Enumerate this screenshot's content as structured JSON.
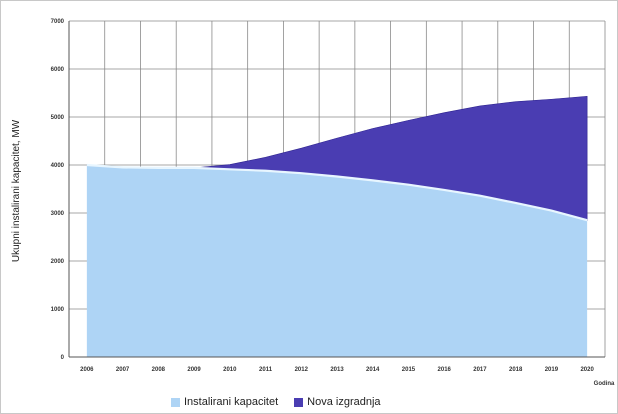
{
  "chart_data": {
    "type": "area",
    "stacked": true,
    "x": [
      "2006",
      "2007",
      "2008",
      "2009",
      "2010",
      "2011",
      "2012",
      "2013",
      "2014",
      "2015",
      "2016",
      "2017",
      "2018",
      "2019",
      "2020"
    ],
    "series": [
      {
        "name": "Instalirani kapacitet",
        "values": [
          4000,
          3950,
          3940,
          3940,
          3910,
          3880,
          3830,
          3760,
          3680,
          3590,
          3480,
          3360,
          3210,
          3050,
          2850
        ],
        "color": "#aed4f5"
      },
      {
        "name": "Nova izgradnja",
        "values": [
          0,
          0,
          0,
          0,
          100,
          280,
          520,
          800,
          1080,
          1340,
          1610,
          1870,
          2110,
          2320,
          2580
        ],
        "color": "#4a3db2"
      }
    ],
    "ylabel": "Ukupni instalirani kapacitet, MW",
    "xlabel": "Godina",
    "ylim": [
      0,
      7000
    ],
    "yticks": [
      0,
      1000,
      2000,
      3000,
      4000,
      5000,
      6000,
      7000
    ],
    "grid": true,
    "legend_position": "bottom"
  }
}
